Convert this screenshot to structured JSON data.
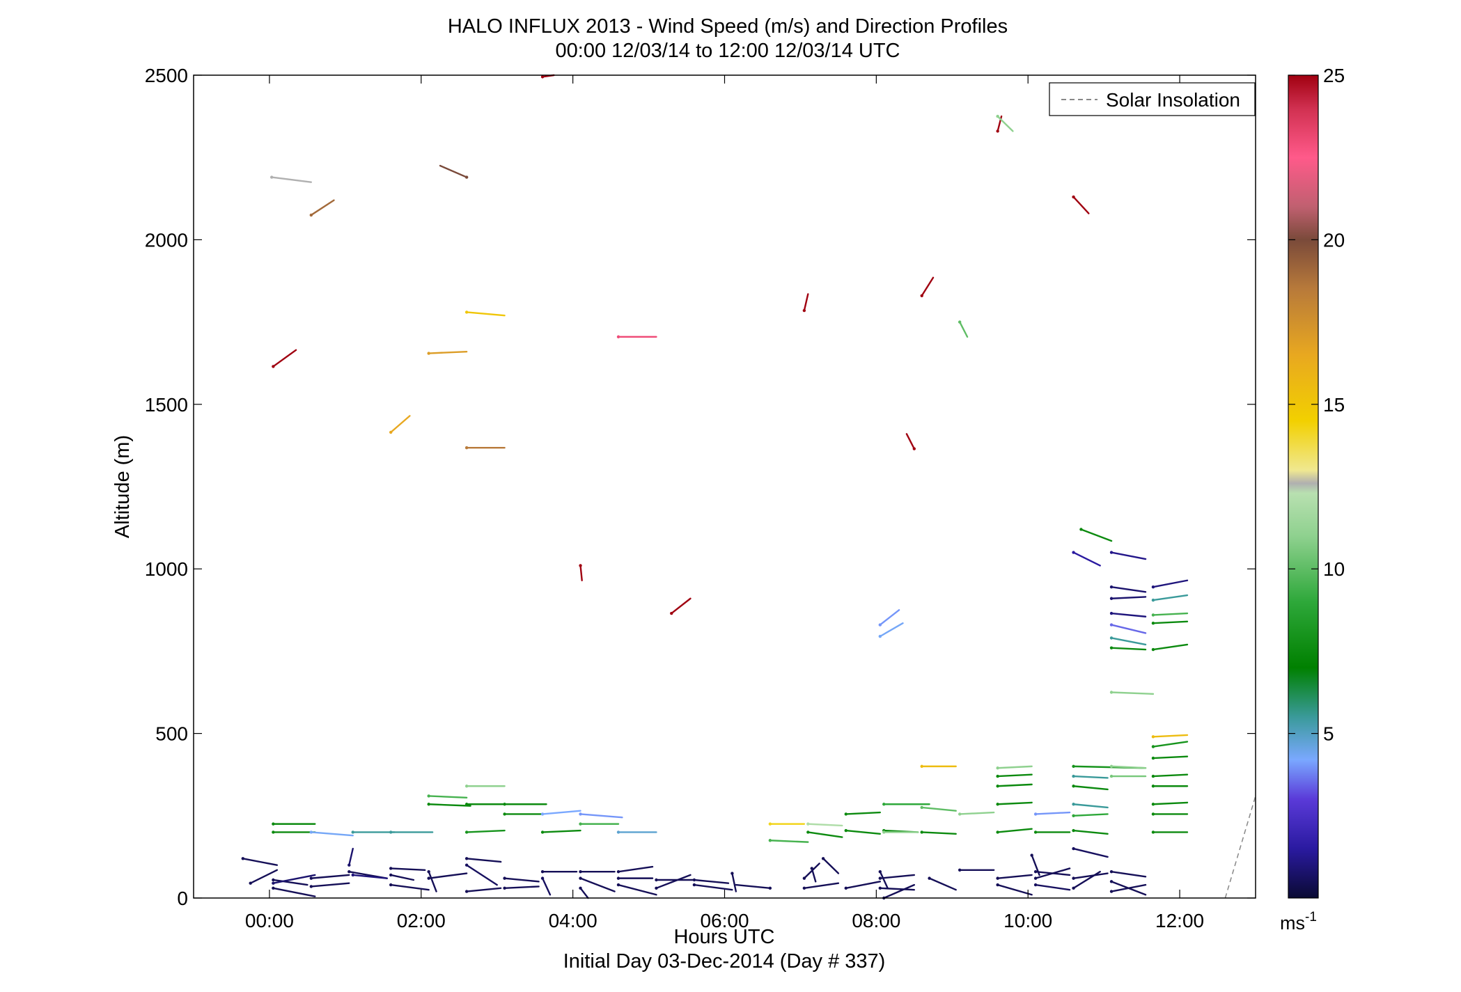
{
  "chart_data": {
    "type": "wind-barb",
    "title": "HALO INFLUX 2013 - Wind Speed (m/s) and Direction Profiles",
    "subtitle": "00:00 12/03/14 to 12:00 12/03/14  UTC",
    "xlabel": "Hours UTC",
    "xlabel2": "Initial Day 03-Dec-2014 (Day # 337)",
    "ylabel": "Altitude (m)",
    "xlim_hours": [
      -1,
      13
    ],
    "ylim": [
      0,
      2500
    ],
    "x_ticks": [
      {
        "value": 0,
        "label": "00:00"
      },
      {
        "value": 2,
        "label": "02:00"
      },
      {
        "value": 4,
        "label": "04:00"
      },
      {
        "value": 6,
        "label": "06:00"
      },
      {
        "value": 8,
        "label": "08:00"
      },
      {
        "value": 10,
        "label": "10:00"
      },
      {
        "value": 12,
        "label": "12:00"
      }
    ],
    "y_ticks": [
      {
        "value": 0,
        "label": "0"
      },
      {
        "value": 500,
        "label": "500"
      },
      {
        "value": 1000,
        "label": "1000"
      },
      {
        "value": 1500,
        "label": "1500"
      },
      {
        "value": 2000,
        "label": "2000"
      },
      {
        "value": 2500,
        "label": "2500"
      }
    ],
    "legend": {
      "label": "Solar Insolation",
      "style": "dashed",
      "color": "#888888",
      "location": "top-right"
    },
    "colorbar": {
      "range": [
        0,
        25
      ],
      "ticks": [
        {
          "value": 5,
          "label": "5"
        },
        {
          "value": 10,
          "label": "10"
        },
        {
          "value": 15,
          "label": "15"
        },
        {
          "value": 20,
          "label": "20"
        },
        {
          "value": 25,
          "label": "25"
        }
      ],
      "units": "ms",
      "units_exp": "-1",
      "stops": [
        {
          "v": 0,
          "c": "#0a0a33"
        },
        {
          "v": 1.5,
          "c": "#2a1aa0"
        },
        {
          "v": 3,
          "c": "#5a3ad8"
        },
        {
          "v": 4.2,
          "c": "#7aa8ff"
        },
        {
          "v": 5.5,
          "c": "#3a9a9a"
        },
        {
          "v": 7,
          "c": "#008000"
        },
        {
          "v": 9,
          "c": "#2ea83a"
        },
        {
          "v": 11,
          "c": "#8fd18f"
        },
        {
          "v": 12.3,
          "c": "#b8e0b0"
        },
        {
          "v": 12.6,
          "c": "#b0b0b0"
        },
        {
          "v": 13,
          "c": "#f0e890"
        },
        {
          "v": 14.5,
          "c": "#f2d000"
        },
        {
          "v": 16.5,
          "c": "#e8a820"
        },
        {
          "v": 18.5,
          "c": "#b87a3a"
        },
        {
          "v": 20,
          "c": "#7a4a3a"
        },
        {
          "v": 21,
          "c": "#c06070"
        },
        {
          "v": 22.5,
          "c": "#ff5a8a"
        },
        {
          "v": 24,
          "c": "#d03050"
        },
        {
          "v": 25,
          "c": "#a00010"
        }
      ]
    },
    "solar_insolation": [
      [
        12.6,
        0
      ],
      [
        13.0,
        310
      ]
    ],
    "barbs": [
      {
        "t": 0.03,
        "h": 2190,
        "dt": 0.52,
        "dh": -15,
        "v": 12.6
      },
      {
        "t": 0.55,
        "h": 2075,
        "dt": 0.3,
        "dh": 45,
        "v": 19
      },
      {
        "t": 0.05,
        "h": 1615,
        "dt": 0.3,
        "dh": 50,
        "v": 25
      },
      {
        "t": 1.6,
        "h": 1415,
        "dt": 0.25,
        "dh": 50,
        "v": 16.5
      },
      {
        "t": 2.6,
        "h": 2190,
        "dt": -0.35,
        "dh": 35,
        "v": 20
      },
      {
        "t": 2.1,
        "h": 1655,
        "dt": 0.5,
        "dh": 5,
        "v": 17
      },
      {
        "t": 2.6,
        "h": 1780,
        "dt": 0.5,
        "dh": -10,
        "v": 15
      },
      {
        "t": 2.6,
        "h": 1368,
        "dt": 0.5,
        "dh": 0,
        "v": 18.5
      },
      {
        "t": 3.6,
        "h": 2495,
        "dt": 0.15,
        "dh": 5,
        "v": 25
      },
      {
        "t": 4.1,
        "h": 1010,
        "dt": 0.02,
        "dh": -45,
        "v": 25
      },
      {
        "t": 4.6,
        "h": 1705,
        "dt": 0.5,
        "dh": 0,
        "v": 23
      },
      {
        "t": 5.3,
        "h": 865,
        "dt": 0.25,
        "dh": 45,
        "v": 25
      },
      {
        "t": 7.05,
        "h": 1785,
        "dt": 0.05,
        "dh": 50,
        "v": 25
      },
      {
        "t": 8.05,
        "h": 795,
        "dt": 0.3,
        "dh": 40,
        "v": 4.3
      },
      {
        "t": 8.05,
        "h": 830,
        "dt": 0.25,
        "dh": 45,
        "v": 4.0
      },
      {
        "t": 8.5,
        "h": 1365,
        "dt": -0.1,
        "dh": 45,
        "v": 25
      },
      {
        "t": 8.6,
        "h": 1830,
        "dt": 0.15,
        "dh": 55,
        "v": 25
      },
      {
        "t": 9.1,
        "h": 1750,
        "dt": 0.1,
        "dh": -45,
        "v": 10
      },
      {
        "t": 9.6,
        "h": 2330,
        "dt": 0.05,
        "dh": 45,
        "v": 25
      },
      {
        "t": 9.6,
        "h": 2375,
        "dt": 0.2,
        "dh": -45,
        "v": 11
      },
      {
        "t": 10.6,
        "h": 2130,
        "dt": 0.2,
        "dh": -50,
        "v": 25
      },
      {
        "t": 10.7,
        "h": 1120,
        "dt": 0.4,
        "dh": -35,
        "v": 7.5
      },
      {
        "t": 10.6,
        "h": 1050,
        "dt": 0.35,
        "dh": -40,
        "v": 1.5
      },
      {
        "t": 11.1,
        "h": 1050,
        "dt": 0.45,
        "dh": -20,
        "v": 1.2
      },
      {
        "t": 11.1,
        "h": 945,
        "dt": 0.45,
        "dh": -15,
        "v": 0.8
      },
      {
        "t": 11.1,
        "h": 910,
        "dt": 0.45,
        "dh": 5,
        "v": 0.8
      },
      {
        "t": 11.1,
        "h": 865,
        "dt": 0.45,
        "dh": -10,
        "v": 1.0
      },
      {
        "t": 11.1,
        "h": 830,
        "dt": 0.45,
        "dh": -25,
        "v": 3.5
      },
      {
        "t": 11.1,
        "h": 790,
        "dt": 0.45,
        "dh": -20,
        "v": 5.5
      },
      {
        "t": 11.1,
        "h": 760,
        "dt": 0.45,
        "dh": -5,
        "v": 7.5
      },
      {
        "t": 11.1,
        "h": 625,
        "dt": 0.55,
        "dh": -5,
        "v": 11
      },
      {
        "t": 11.65,
        "h": 945,
        "dt": 0.45,
        "dh": 20,
        "v": 1.0
      },
      {
        "t": 11.65,
        "h": 905,
        "dt": 0.45,
        "dh": 15,
        "v": 5.5
      },
      {
        "t": 11.65,
        "h": 860,
        "dt": 0.45,
        "dh": 5,
        "v": 9.5
      },
      {
        "t": 11.65,
        "h": 835,
        "dt": 0.45,
        "dh": 5,
        "v": 7.5
      },
      {
        "t": 11.65,
        "h": 755,
        "dt": 0.45,
        "dh": 15,
        "v": 7.5
      },
      {
        "t": 11.65,
        "h": 490,
        "dt": 0.45,
        "dh": 5,
        "v": 15.5
      },
      {
        "t": 11.65,
        "h": 460,
        "dt": 0.45,
        "dh": 15,
        "v": 8
      },
      {
        "t": 11.65,
        "h": 425,
        "dt": 0.45,
        "dh": 5,
        "v": 7.5
      },
      {
        "t": 11.65,
        "h": 370,
        "dt": 0.45,
        "dh": 5,
        "v": 7.5
      },
      {
        "t": 11.65,
        "h": 340,
        "dt": 0.45,
        "dh": 0,
        "v": 7.5
      },
      {
        "t": 11.65,
        "h": 285,
        "dt": 0.45,
        "dh": 5,
        "v": 7.5
      },
      {
        "t": 11.65,
        "h": 255,
        "dt": 0.45,
        "dh": 0,
        "v": 7.5
      },
      {
        "t": 11.65,
        "h": 200,
        "dt": 0.45,
        "dh": 0,
        "v": 7.5
      },
      {
        "t": 10.6,
        "h": 400,
        "dt": 0.95,
        "dh": -5,
        "v": 8
      },
      {
        "t": 10.6,
        "h": 370,
        "dt": 0.45,
        "dh": -5,
        "v": 5.5
      },
      {
        "t": 10.6,
        "h": 340,
        "dt": 0.45,
        "dh": -10,
        "v": 7.5
      },
      {
        "t": 10.6,
        "h": 285,
        "dt": 0.45,
        "dh": -10,
        "v": 5.5
      },
      {
        "t": 10.6,
        "h": 250,
        "dt": 0.45,
        "dh": 5,
        "v": 9
      },
      {
        "t": 10.6,
        "h": 205,
        "dt": 0.45,
        "dh": -10,
        "v": 7.5
      },
      {
        "t": 11.1,
        "h": 370,
        "dt": 0.45,
        "dh": 0,
        "v": 10.5
      },
      {
        "t": 11.1,
        "h": 400,
        "dt": 0.45,
        "dh": -5,
        "v": 11
      },
      {
        "t": 9.6,
        "h": 395,
        "dt": 0.45,
        "dh": 5,
        "v": 11
      },
      {
        "t": 9.6,
        "h": 370,
        "dt": 0.45,
        "dh": 5,
        "v": 7.5
      },
      {
        "t": 9.6,
        "h": 340,
        "dt": 0.45,
        "dh": 5,
        "v": 7.5
      },
      {
        "t": 9.6,
        "h": 285,
        "dt": 0.45,
        "dh": 5,
        "v": 7.5
      },
      {
        "t": 9.6,
        "h": 200,
        "dt": 0.45,
        "dh": 10,
        "v": 7.5
      },
      {
        "t": 10.1,
        "h": 255,
        "dt": 0.45,
        "dh": 5,
        "v": 4.0
      },
      {
        "t": 10.1,
        "h": 200,
        "dt": 0.45,
        "dh": 0,
        "v": 7.5
      },
      {
        "t": 9.1,
        "h": 255,
        "dt": 0.45,
        "dh": 5,
        "v": 11
      },
      {
        "t": 8.6,
        "h": 400,
        "dt": 0.45,
        "dh": 0,
        "v": 15.5
      },
      {
        "t": 8.1,
        "h": 285,
        "dt": 0.6,
        "dh": 0,
        "v": 9
      },
      {
        "t": 8.6,
        "h": 275,
        "dt": 0.45,
        "dh": -10,
        "v": 10
      },
      {
        "t": 8.1,
        "h": 205,
        "dt": 0.45,
        "dh": -5,
        "v": 7.5
      },
      {
        "t": 8.1,
        "h": 200,
        "dt": 0.45,
        "dh": 0,
        "v": 11
      },
      {
        "t": 8.6,
        "h": 200,
        "dt": 0.45,
        "dh": -5,
        "v": 7.5
      },
      {
        "t": 7.6,
        "h": 255,
        "dt": 0.45,
        "dh": 5,
        "v": 7.5
      },
      {
        "t": 7.1,
        "h": 225,
        "dt": 0.45,
        "dh": -5,
        "v": 12
      },
      {
        "t": 7.1,
        "h": 200,
        "dt": 0.45,
        "dh": -15,
        "v": 7.5
      },
      {
        "t": 7.6,
        "h": 205,
        "dt": 0.45,
        "dh": -10,
        "v": 7.5
      },
      {
        "t": 6.6,
        "h": 225,
        "dt": 0.45,
        "dh": 0,
        "v": 14.2
      },
      {
        "t": 6.6,
        "h": 175,
        "dt": 0.5,
        "dh": -5,
        "v": 9.5
      },
      {
        "t": 0.05,
        "h": 225,
        "dt": 0.55,
        "dh": 0,
        "v": 7.5
      },
      {
        "t": 0.05,
        "h": 200,
        "dt": 0.55,
        "dh": 0,
        "v": 7.5
      },
      {
        "t": 0.55,
        "h": 200,
        "dt": 0.55,
        "dh": -10,
        "v": 4.3
      },
      {
        "t": 1.1,
        "h": 200,
        "dt": 0.55,
        "dh": 0,
        "v": 5.5
      },
      {
        "t": 1.6,
        "h": 200,
        "dt": 0.55,
        "dh": 0,
        "v": 5.5
      },
      {
        "t": 2.1,
        "h": 310,
        "dt": 0.5,
        "dh": -5,
        "v": 9.5
      },
      {
        "t": 2.1,
        "h": 285,
        "dt": 0.55,
        "dh": -5,
        "v": 7.5
      },
      {
        "t": 2.6,
        "h": 340,
        "dt": 0.5,
        "dh": 0,
        "v": 11
      },
      {
        "t": 2.6,
        "h": 285,
        "dt": 0.55,
        "dh": 0,
        "v": 7.5
      },
      {
        "t": 3.1,
        "h": 285,
        "dt": 0.55,
        "dh": 0,
        "v": 7.5
      },
      {
        "t": 2.6,
        "h": 200,
        "dt": 0.5,
        "dh": 5,
        "v": 8
      },
      {
        "t": 3.1,
        "h": 255,
        "dt": 0.5,
        "dh": 0,
        "v": 7.5
      },
      {
        "t": 3.6,
        "h": 255,
        "dt": 0.5,
        "dh": 10,
        "v": 4.2
      },
      {
        "t": 3.6,
        "h": 200,
        "dt": 0.5,
        "dh": 5,
        "v": 7.5
      },
      {
        "t": 4.1,
        "h": 255,
        "dt": 0.55,
        "dh": -10,
        "v": 4.0
      },
      {
        "t": 4.1,
        "h": 225,
        "dt": 0.5,
        "dh": 0,
        "v": 9.5
      },
      {
        "t": 4.6,
        "h": 200,
        "dt": 0.5,
        "dh": 0,
        "v": 4.8
      },
      {
        "t": -0.35,
        "h": 120,
        "dt": 0.45,
        "dh": -20,
        "v": 0.5
      },
      {
        "t": -0.25,
        "h": 45,
        "dt": 0.35,
        "dh": 40,
        "v": 0.5
      },
      {
        "t": 0.05,
        "h": 55,
        "dt": 0.45,
        "dh": -15,
        "v": 0.5
      },
      {
        "t": 0.05,
        "h": 30,
        "dt": 0.55,
        "dh": -25,
        "v": 0.5
      },
      {
        "t": 0.05,
        "h": 45,
        "dt": 0.55,
        "dh": 25,
        "v": 0.8
      },
      {
        "t": 0.55,
        "h": 60,
        "dt": 0.5,
        "dh": 10,
        "v": 0.5
      },
      {
        "t": 0.55,
        "h": 35,
        "dt": 0.5,
        "dh": 10,
        "v": 0.5
      },
      {
        "t": 1.05,
        "h": 80,
        "dt": 0.5,
        "dh": -20,
        "v": 0.5
      },
      {
        "t": 1.05,
        "h": 100,
        "dt": 0.05,
        "dh": 50,
        "v": 0.8
      },
      {
        "t": 1.1,
        "h": 70,
        "dt": 0.45,
        "dh": -10,
        "v": 1.0
      },
      {
        "t": 1.6,
        "h": 70,
        "dt": 0.3,
        "dh": -15,
        "v": 0.5
      },
      {
        "t": 1.6,
        "h": 90,
        "dt": 0.45,
        "dh": -5,
        "v": 0.5
      },
      {
        "t": 1.6,
        "h": 40,
        "dt": 0.5,
        "dh": -15,
        "v": 0.5
      },
      {
        "t": 2.1,
        "h": 80,
        "dt": 0.1,
        "dh": -60,
        "v": 0.5
      },
      {
        "t": 2.1,
        "h": 60,
        "dt": 0.5,
        "dh": 15,
        "v": 0.5
      },
      {
        "t": 2.6,
        "h": 120,
        "dt": 0.45,
        "dh": -10,
        "v": 0.5
      },
      {
        "t": 2.6,
        "h": 100,
        "dt": 0.4,
        "dh": -60,
        "v": 0.6
      },
      {
        "t": 2.6,
        "h": 20,
        "dt": 0.45,
        "dh": 10,
        "v": 0.5
      },
      {
        "t": 3.1,
        "h": 60,
        "dt": 0.45,
        "dh": -10,
        "v": 0.5
      },
      {
        "t": 3.1,
        "h": 30,
        "dt": 0.45,
        "dh": 5,
        "v": 0.5
      },
      {
        "t": 3.6,
        "h": 80,
        "dt": 0.45,
        "dh": 0,
        "v": 0.5
      },
      {
        "t": 3.6,
        "h": 60,
        "dt": 0.1,
        "dh": -50,
        "v": 0.6
      },
      {
        "t": 4.1,
        "h": 80,
        "dt": 0.45,
        "dh": 0,
        "v": 0.5
      },
      {
        "t": 4.1,
        "h": 60,
        "dt": 0.45,
        "dh": -40,
        "v": 0.5
      },
      {
        "t": 4.1,
        "h": 30,
        "dt": 0.1,
        "dh": -30,
        "v": 0.5
      },
      {
        "t": 4.6,
        "h": 80,
        "dt": 0.45,
        "dh": 15,
        "v": 0.5
      },
      {
        "t": 4.6,
        "h": 60,
        "dt": 0.45,
        "dh": 0,
        "v": 0.5
      },
      {
        "t": 4.6,
        "h": 40,
        "dt": 0.5,
        "dh": -30,
        "v": 0.5
      },
      {
        "t": 5.1,
        "h": 55,
        "dt": 0.5,
        "dh": 0,
        "v": 0.5
      },
      {
        "t": 5.1,
        "h": 30,
        "dt": 0.45,
        "dh": 40,
        "v": 0.5
      },
      {
        "t": 5.6,
        "h": 55,
        "dt": 0.45,
        "dh": -10,
        "v": 0.5
      },
      {
        "t": 5.6,
        "h": 40,
        "dt": 0.5,
        "dh": -15,
        "v": 0.5
      },
      {
        "t": 6.1,
        "h": 75,
        "dt": 0.05,
        "dh": -55,
        "v": 0.5
      },
      {
        "t": 6.6,
        "h": 30,
        "dt": -0.45,
        "dh": 10,
        "v": 0.5
      },
      {
        "t": 7.05,
        "h": 30,
        "dt": 0.45,
        "dh": 15,
        "v": 0.5
      },
      {
        "t": 7.05,
        "h": 60,
        "dt": 0.2,
        "dh": 45,
        "v": 0.5
      },
      {
        "t": 7.15,
        "h": 90,
        "dt": 0.05,
        "dh": -40,
        "v": 0.5
      },
      {
        "t": 7.3,
        "h": 120,
        "dt": 0.2,
        "dh": -45,
        "v": 0.5
      },
      {
        "t": 7.6,
        "h": 30,
        "dt": 0.45,
        "dh": 20,
        "v": 0.5
      },
      {
        "t": 8.05,
        "h": 30,
        "dt": 0.45,
        "dh": -5,
        "v": 0.5
      },
      {
        "t": 8.05,
        "h": 60,
        "dt": 0.45,
        "dh": 10,
        "v": 0.5
      },
      {
        "t": 8.05,
        "h": 80,
        "dt": 0.1,
        "dh": -50,
        "v": 0.5
      },
      {
        "t": 8.1,
        "h": 0,
        "dt": 0.4,
        "dh": 40,
        "v": 0.5
      },
      {
        "t": 8.7,
        "h": 60,
        "dt": 0.35,
        "dh": -35,
        "v": 0.5
      },
      {
        "t": 9.1,
        "h": 85,
        "dt": 0.45,
        "dh": 0,
        "v": 0.5
      },
      {
        "t": 9.6,
        "h": 60,
        "dt": 0.45,
        "dh": 10,
        "v": 0.5
      },
      {
        "t": 9.6,
        "h": 40,
        "dt": 0.45,
        "dh": -30,
        "v": 0.5
      },
      {
        "t": 10.05,
        "h": 130,
        "dt": 0.1,
        "dh": -60,
        "v": 0.5
      },
      {
        "t": 10.1,
        "h": 80,
        "dt": 0.45,
        "dh": -10,
        "v": 0.5
      },
      {
        "t": 10.1,
        "h": 40,
        "dt": 0.45,
        "dh": -15,
        "v": 0.6
      },
      {
        "t": 10.1,
        "h": 60,
        "dt": 0.45,
        "dh": 30,
        "v": 0.5
      },
      {
        "t": 10.6,
        "h": 30,
        "dt": 0.35,
        "dh": 50,
        "v": 0.5
      },
      {
        "t": 10.6,
        "h": 60,
        "dt": 0.45,
        "dh": 15,
        "v": 0.5
      },
      {
        "t": 10.6,
        "h": 150,
        "dt": 0.45,
        "dh": -25,
        "v": 0.6
      },
      {
        "t": 11.1,
        "h": 80,
        "dt": 0.45,
        "dh": -15,
        "v": 0.5
      },
      {
        "t": 11.1,
        "h": 50,
        "dt": 0.45,
        "dh": -40,
        "v": 0.5
      },
      {
        "t": 11.1,
        "h": 20,
        "dt": 0.45,
        "dh": 20,
        "v": 0.5
      }
    ]
  }
}
